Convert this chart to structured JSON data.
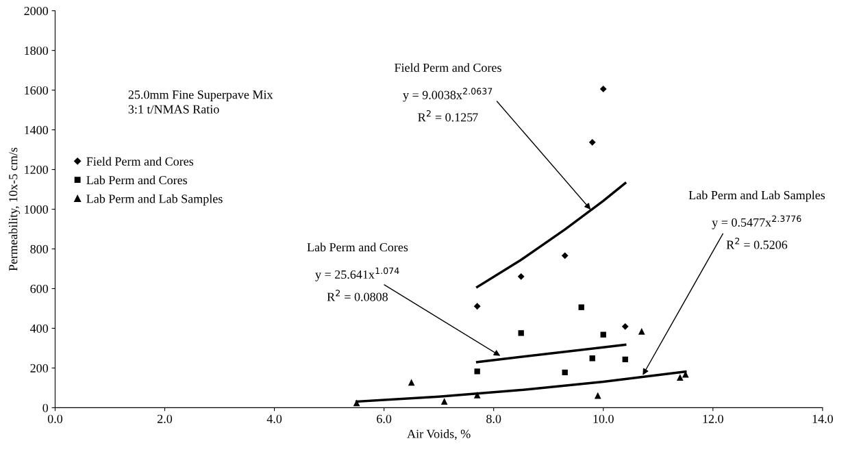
{
  "chart_data": {
    "type": "scatter",
    "xlabel": "Air Voids, %",
    "ylabel": "Permeability, 10x-5 cm/s",
    "xlim": [
      0,
      14
    ],
    "ylim": [
      0,
      2000
    ],
    "xticks": [
      {
        "value": 0,
        "label": "0.0"
      },
      {
        "value": 2,
        "label": "2.0"
      },
      {
        "value": 4,
        "label": "4.0"
      },
      {
        "value": 6,
        "label": "6.0"
      },
      {
        "value": 8,
        "label": "8.0"
      },
      {
        "value": 10,
        "label": "10.0"
      },
      {
        "value": 12,
        "label": "12.0"
      },
      {
        "value": 14,
        "label": "14.0"
      }
    ],
    "yticks": [
      0,
      200,
      400,
      600,
      800,
      1000,
      1200,
      1400,
      1600,
      1800,
      2000
    ],
    "grid": false,
    "legend": "top left",
    "series": [
      {
        "name": "Field Perm and Cores",
        "color": "#000000",
        "marker": "diamond",
        "x": [
          7.7,
          8.5,
          9.3,
          9.8,
          10.0,
          10.4
        ],
        "values": [
          511,
          661,
          766,
          1337,
          1606,
          409
        ]
      },
      {
        "name": "Lab Perm and Cores",
        "color": "#000000",
        "marker": "square",
        "x": [
          7.7,
          8.5,
          9.3,
          9.6,
          9.8,
          10.0,
          10.4
        ],
        "values": [
          183,
          376,
          178,
          506,
          249,
          368,
          243
        ]
      },
      {
        "name": "Lab Perm and Lab Samples",
        "color": "#000000",
        "marker": "triangle",
        "x": [
          5.5,
          6.5,
          7.1,
          7.7,
          9.9,
          10.7,
          11.4,
          11.5
        ],
        "values": [
          24,
          128,
          32,
          64,
          61,
          385,
          153,
          168
        ]
      },
      {
        "type": "line",
        "color": "#000000",
        "marker": "none",
        "x": [
          7.7,
          8.5,
          9.3,
          10.0,
          10.4
        ],
        "values": [
          608,
          745,
          898,
          1042,
          1131
        ]
      },
      {
        "type": "line",
        "color": "#000000",
        "marker": "none",
        "x": [
          7.7,
          9.0,
          10.4
        ],
        "values": [
          230,
          272,
          317
        ]
      },
      {
        "type": "line",
        "color": "#000000",
        "marker": "none",
        "x": [
          5.5,
          7.0,
          8.5,
          10.0,
          11.5
        ],
        "values": [
          31,
          56,
          89,
          131,
          182
        ]
      }
    ],
    "annotations": [
      "25.0mm Fine Superpave Mix\n3:1 t/NMAS Ratio",
      "Field Perm and Cores",
      {
        "text": "y = 9.0038x$^{2.0637}$",
        "x": 9.77,
        "y": 998
      },
      "R$^{2}$ = 0.1257",
      "Lab Perm and Cores",
      {
        "text": "y = 25.641x$^{1.074}$",
        "x": 8.12,
        "y": 261
      },
      "R$^{2}$ = 0.0808",
      "Lab Perm and Lab Samples",
      {
        "text": "y = 0.5477x$^{2.3776}$",
        "x": 10.72,
        "y": 164
      },
      "R$^{2}$ = 0.5206"
    ]
  }
}
